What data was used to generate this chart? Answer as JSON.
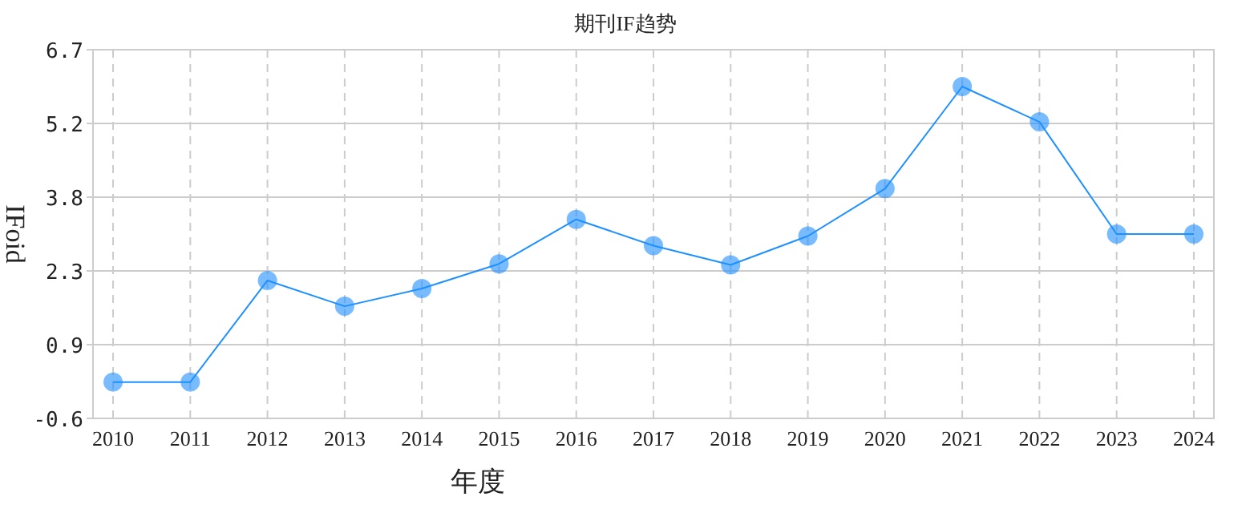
{
  "chart_data": {
    "type": "line",
    "title": "期刊IF趋势",
    "xlabel": "年度",
    "ylabel": "IFoid",
    "categories": [
      "2010",
      "2011",
      "2012",
      "2013",
      "2014",
      "2015",
      "2016",
      "2017",
      "2018",
      "2019",
      "2020",
      "2021",
      "2022",
      "2023",
      "2024"
    ],
    "series": [
      {
        "color": "#1e90ff",
        "values": [
          0.12,
          0.12,
          2.13,
          1.62,
          1.97,
          2.46,
          3.34,
          2.82,
          2.44,
          3.01,
          3.95,
          5.97,
          5.27,
          3.05,
          3.05
        ]
      }
    ],
    "ylim": [
      -0.6,
      6.7
    ],
    "yticks": [
      -0.6,
      {
        "value": 0.86,
        "label": "0.9"
      },
      {
        "value": 2.32,
        "label": "2.3"
      },
      {
        "value": 3.78,
        "label": "3.8"
      },
      {
        "value": 5.24,
        "label": "5.2"
      },
      6.7
    ],
    "grid": true,
    "marker": "circle",
    "line_style": "solid"
  }
}
